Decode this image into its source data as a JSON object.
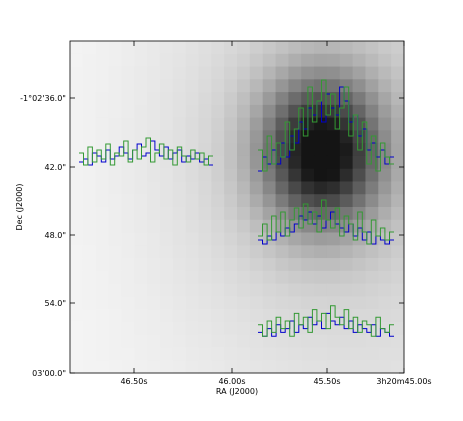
{
  "chart_data": {
    "type": "heatmap",
    "title": "",
    "xlabel": "RA (J2000)",
    "ylabel": "Dec (J2000)",
    "x_ticks": [
      "46.50s",
      "46.00s",
      "45.50s",
      "3h20m45.00s"
    ],
    "y_ticks": [
      "-1°02'36.0\"",
      "42.0\"",
      "48.0\"",
      "54.0\"",
      "03'00.0\""
    ],
    "colormap": "gray_r",
    "grid": false,
    "source_peak_ra": "45.35s",
    "source_peak_dec": "41.5\"",
    "spectra": [
      {
        "position": "left, Dec 42.0\"",
        "series": [
          {
            "color": "#0000cc",
            "profile": [
              0.2,
              0.3,
              0.1,
              0.5,
              0.4,
              0.2,
              0.6,
              0.3,
              0.4,
              0.7,
              0.5,
              0.3,
              0.6,
              0.8,
              0.4,
              0.5,
              0.9,
              0.6,
              0.4,
              0.7,
              0.3,
              0.5,
              0.6,
              0.2,
              0.4,
              0.3,
              0.5,
              0.2,
              0.3,
              0.1
            ]
          },
          {
            "color": "#339933",
            "profile": [
              0.5,
              0.1,
              0.7,
              0.2,
              0.6,
              0.3,
              0.8,
              0.1,
              0.5,
              0.4,
              0.9,
              0.2,
              0.6,
              0.3,
              0.7,
              1.0,
              0.2,
              0.5,
              0.8,
              0.3,
              0.6,
              0.1,
              0.7,
              0.4,
              0.2,
              0.6,
              0.3,
              0.5,
              0.1,
              0.4
            ]
          }
        ]
      },
      {
        "position": "upper right, Dec 42.0\"",
        "series": [
          {
            "color": "#0000cc",
            "profile": [
              0.1,
              0.3,
              0.2,
              0.4,
              0.2,
              0.5,
              0.3,
              0.6,
              0.5,
              0.8,
              0.7,
              1.0,
              0.9,
              1.1,
              0.8,
              1.2,
              1.0,
              0.9,
              1.3,
              1.1,
              0.8,
              0.9,
              0.6,
              0.7,
              0.4,
              0.5,
              0.3,
              0.4,
              0.2,
              0.3
            ]
          },
          {
            "color": "#339933",
            "profile": [
              0.4,
              0.1,
              0.6,
              0.2,
              0.5,
              0.3,
              0.8,
              0.4,
              0.7,
              1.0,
              0.6,
              1.3,
              0.8,
              1.1,
              1.4,
              0.9,
              1.2,
              0.7,
              1.0,
              1.3,
              0.6,
              0.9,
              0.4,
              0.8,
              0.2,
              0.6,
              0.1,
              0.5,
              0.3,
              0.2
            ]
          }
        ]
      },
      {
        "position": "middle right, Dec 48.0\"",
        "series": [
          {
            "color": "#0000cc",
            "profile": [
              0.2,
              0.1,
              0.3,
              0.2,
              0.4,
              0.3,
              0.5,
              0.4,
              0.6,
              0.8,
              0.7,
              0.9,
              0.6,
              0.8,
              0.5,
              0.7,
              0.9,
              0.6,
              0.5,
              0.4,
              0.6,
              0.3,
              0.5,
              0.2,
              0.4,
              0.1,
              0.3,
              0.2,
              0.1,
              0.2
            ]
          },
          {
            "color": "#339933",
            "profile": [
              0.3,
              0.6,
              0.2,
              0.8,
              0.4,
              0.9,
              0.3,
              0.7,
              1.0,
              0.5,
              1.1,
              0.6,
              0.9,
              0.4,
              1.2,
              0.7,
              0.5,
              1.0,
              0.3,
              0.8,
              0.6,
              0.2,
              0.9,
              0.4,
              0.1,
              0.7,
              0.3,
              0.5,
              0.2,
              0.4
            ]
          }
        ]
      },
      {
        "position": "lower right, Dec 54.0\"",
        "series": [
          {
            "color": "#0000cc",
            "profile": [
              0.2,
              0.1,
              0.3,
              0.1,
              0.4,
              0.2,
              0.3,
              0.5,
              0.2,
              0.4,
              0.3,
              0.6,
              0.4,
              0.5,
              0.3,
              0.7,
              0.5,
              0.4,
              0.6,
              0.3,
              0.5,
              0.2,
              0.4,
              0.3,
              0.2,
              0.4,
              0.1,
              0.3,
              0.2,
              0.1
            ]
          },
          {
            "color": "#339933",
            "profile": [
              0.4,
              0.1,
              0.5,
              0.2,
              0.6,
              0.3,
              0.5,
              0.1,
              0.7,
              0.4,
              0.6,
              0.2,
              0.8,
              0.5,
              0.7,
              0.3,
              0.9,
              0.6,
              0.4,
              0.8,
              0.3,
              0.6,
              0.2,
              0.5,
              0.4,
              0.1,
              0.6,
              0.3,
              0.2,
              0.4
            ]
          }
        ]
      }
    ]
  }
}
